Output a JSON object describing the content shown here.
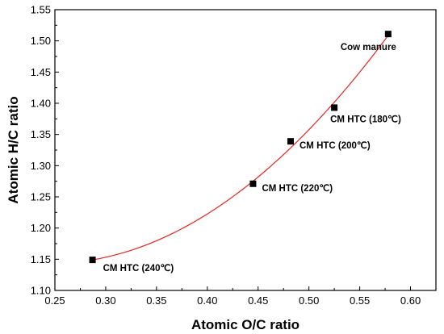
{
  "chart_data": {
    "type": "scatter",
    "title": "",
    "xlabel": "Atomic O/C ratio",
    "ylabel": "Atomic H/C ratio",
    "xlim": [
      0.25,
      0.625
    ],
    "ylim": [
      1.1,
      1.55
    ],
    "x_ticks": [
      "0.25",
      "0.30",
      "0.35",
      "0.40",
      "0.45",
      "0.50",
      "0.55",
      "0.60"
    ],
    "y_ticks": [
      "1.10",
      "1.15",
      "1.20",
      "1.25",
      "1.30",
      "1.35",
      "1.40",
      "1.45",
      "1.50",
      "1.55"
    ],
    "points": [
      {
        "label": "Cow manure",
        "x": 0.578,
        "y": 1.511,
        "label_position": "below-left"
      },
      {
        "label": "CM HTC (180℃)",
        "x": 0.525,
        "y": 1.393,
        "label_position": "below"
      },
      {
        "label": "CM HTC (200℃)",
        "x": 0.482,
        "y": 1.339,
        "label_position": "right"
      },
      {
        "label": "CM HTC (220℃)",
        "x": 0.445,
        "y": 1.271,
        "label_position": "right"
      },
      {
        "label": "CM HTC (240℃)",
        "x": 0.287,
        "y": 1.149,
        "label_position": "below-right"
      }
    ],
    "fit_curve": {
      "type": "polynomial",
      "degree": 2,
      "color": "#e8231f"
    },
    "marker": {
      "shape": "square",
      "color": "#000000"
    },
    "grid": false,
    "legend": "none"
  }
}
